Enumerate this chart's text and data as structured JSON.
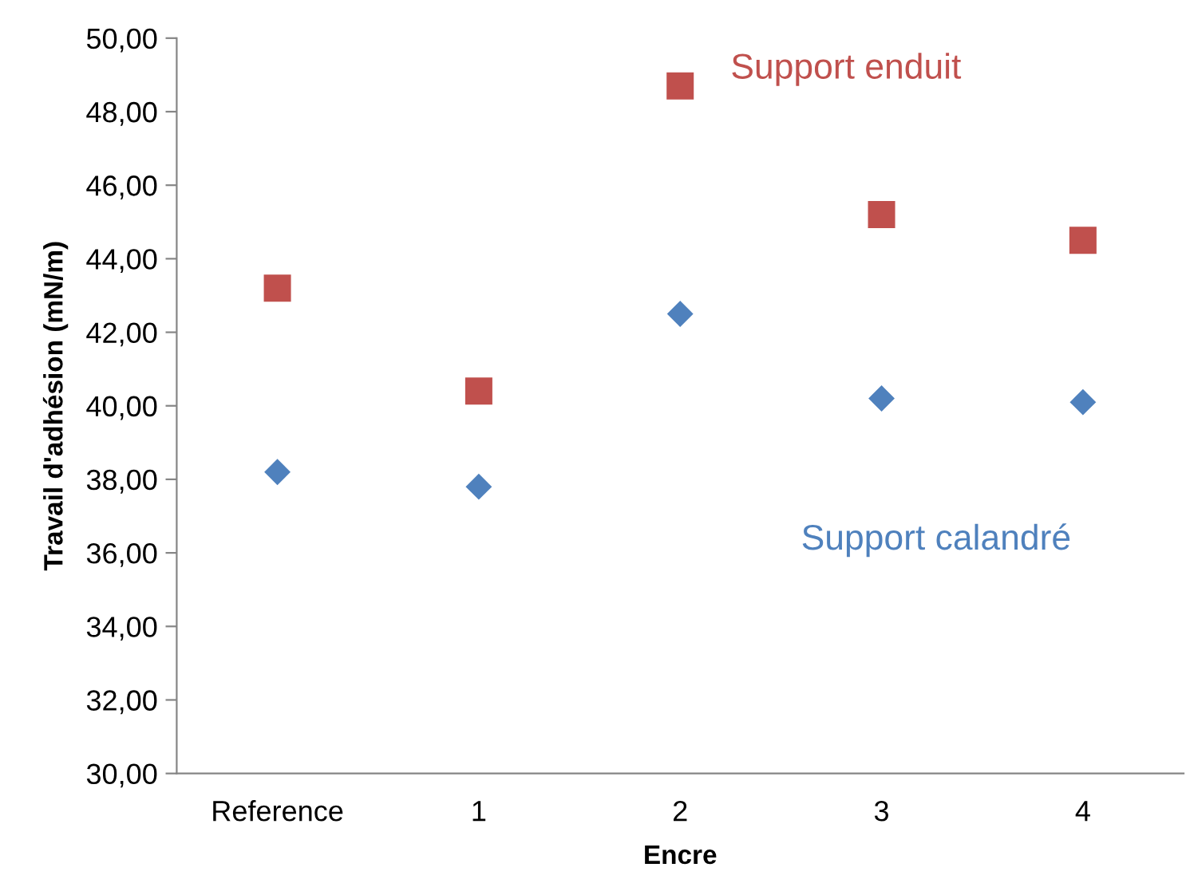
{
  "chart_data": {
    "type": "scatter",
    "xlabel": "Encre",
    "ylabel": "Travail d'adhésion (mN/m)",
    "categories": [
      "Reference",
      "1",
      "2",
      "3",
      "4"
    ],
    "series": [
      {
        "name": "Support enduit",
        "color": "#c0504d",
        "marker": "square",
        "values": [
          43.2,
          40.4,
          48.7,
          45.2,
          44.5
        ]
      },
      {
        "name": "Support calandré",
        "color": "#4f81bd",
        "marker": "diamond",
        "values": [
          38.2,
          37.8,
          42.5,
          40.2,
          40.1
        ]
      }
    ],
    "ylim": [
      30,
      50
    ],
    "yticks": [
      {
        "value": 30,
        "label": "30,00"
      },
      {
        "value": 32,
        "label": "32,00"
      },
      {
        "value": 34,
        "label": "34,00"
      },
      {
        "value": 36,
        "label": "36,00"
      },
      {
        "value": 38,
        "label": "38,00"
      },
      {
        "value": 40,
        "label": "40,00"
      },
      {
        "value": 42,
        "label": "42,00"
      },
      {
        "value": 44,
        "label": "44,00"
      },
      {
        "value": 46,
        "label": "46,00"
      },
      {
        "value": 48,
        "label": "48,00"
      },
      {
        "value": 50,
        "label": "50,00"
      }
    ],
    "grid": false,
    "legend": false
  }
}
